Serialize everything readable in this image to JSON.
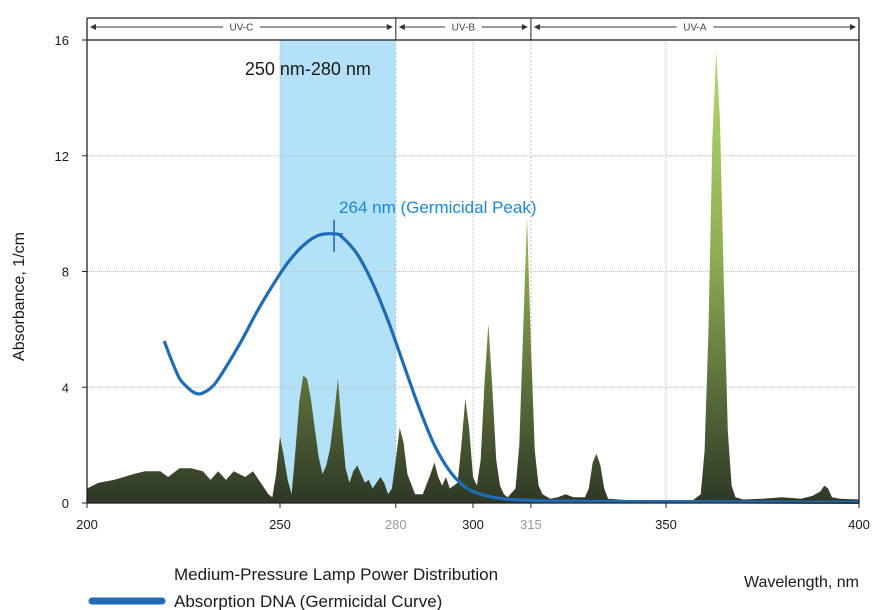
{
  "chart_data": {
    "type": "area",
    "ylabel": "Absorbance, 1/cm",
    "xlabel": "Wavelength, nm",
    "xlim": [
      200,
      400
    ],
    "ylim": [
      0,
      16
    ],
    "y_ticks": [
      "0",
      "4",
      "8",
      "12",
      "16"
    ],
    "x_ticks": [
      {
        "value": 200,
        "label": "200",
        "dim": false
      },
      {
        "value": 250,
        "label": "250",
        "dim": false
      },
      {
        "value": 280,
        "label": "280",
        "dim": true
      },
      {
        "value": 300,
        "label": "300",
        "dim": false
      },
      {
        "value": 315,
        "label": "315",
        "dim": true
      },
      {
        "value": 350,
        "label": "350",
        "dim": false
      },
      {
        "value": 400,
        "label": "400",
        "dim": false
      }
    ],
    "grid": true,
    "bands": [
      {
        "label": "UV-C",
        "from": 200,
        "to": 280
      },
      {
        "label": "UV-B",
        "from": 280,
        "to": 315
      },
      {
        "label": "UV-A",
        "from": 315,
        "to": 400
      }
    ],
    "highlight": {
      "label": "250 nm-280 nm",
      "from": 250,
      "to": 280,
      "color": "#b3e1f7"
    },
    "peak_annotation": {
      "label": "264 nm (Germicidal Peak)",
      "x": 264,
      "y": 9.3
    },
    "series": [
      {
        "name": "Medium-Pressure Lamp Power Distribution",
        "kind": "area",
        "color": "#a6cc5c",
        "points": [
          [
            200,
            0.5
          ],
          [
            203,
            0.7
          ],
          [
            207,
            0.8
          ],
          [
            212,
            1.0
          ],
          [
            215,
            1.1
          ],
          [
            219,
            1.1
          ],
          [
            221,
            0.9
          ],
          [
            224,
            1.2
          ],
          [
            227,
            1.2
          ],
          [
            230,
            1.1
          ],
          [
            232,
            0.8
          ],
          [
            234,
            1.1
          ],
          [
            236,
            0.8
          ],
          [
            238,
            1.1
          ],
          [
            241,
            0.9
          ],
          [
            243,
            1.1
          ],
          [
            245,
            0.7
          ],
          [
            247,
            0.3
          ],
          [
            248,
            0.2
          ],
          [
            249,
            1.0
          ],
          [
            250,
            2.3
          ],
          [
            251,
            1.6
          ],
          [
            252,
            0.8
          ],
          [
            253,
            0.3
          ],
          [
            254,
            1.8
          ],
          [
            255,
            3.5
          ],
          [
            256,
            4.4
          ],
          [
            257,
            4.3
          ],
          [
            258,
            3.6
          ],
          [
            259,
            2.6
          ],
          [
            260,
            1.6
          ],
          [
            261,
            1.0
          ],
          [
            262,
            1.3
          ],
          [
            263,
            1.9
          ],
          [
            264,
            3.0
          ],
          [
            265,
            4.3
          ],
          [
            266,
            2.6
          ],
          [
            267,
            1.2
          ],
          [
            268,
            0.7
          ],
          [
            269,
            1.1
          ],
          [
            270,
            1.3
          ],
          [
            271,
            1.0
          ],
          [
            272,
            0.7
          ],
          [
            273,
            0.8
          ],
          [
            274,
            0.5
          ],
          [
            276,
            0.9
          ],
          [
            277,
            0.7
          ],
          [
            278,
            0.3
          ],
          [
            279,
            0.5
          ],
          [
            280,
            1.5
          ],
          [
            281,
            2.6
          ],
          [
            282,
            2.1
          ],
          [
            283,
            1.0
          ],
          [
            285,
            0.3
          ],
          [
            287,
            0.3
          ],
          [
            289,
            1.0
          ],
          [
            290,
            1.4
          ],
          [
            291,
            0.9
          ],
          [
            292,
            0.6
          ],
          [
            293,
            0.9
          ],
          [
            294,
            0.5
          ],
          [
            296,
            0.7
          ],
          [
            297,
            2.0
          ],
          [
            298,
            3.6
          ],
          [
            299,
            2.6
          ],
          [
            300,
            0.9
          ],
          [
            301,
            0.6
          ],
          [
            302,
            1.5
          ],
          [
            303,
            4.2
          ],
          [
            304,
            6.2
          ],
          [
            305,
            4.0
          ],
          [
            306,
            1.5
          ],
          [
            307,
            0.6
          ],
          [
            308,
            0.3
          ],
          [
            309,
            0.2
          ],
          [
            311,
            0.5
          ],
          [
            312,
            2.0
          ],
          [
            313,
            6.0
          ],
          [
            314,
            9.9
          ],
          [
            315,
            5.5
          ],
          [
            316,
            1.8
          ],
          [
            317,
            0.6
          ],
          [
            318,
            0.3
          ],
          [
            320,
            0.15
          ],
          [
            322,
            0.2
          ],
          [
            324,
            0.3
          ],
          [
            326,
            0.2
          ],
          [
            329,
            0.2
          ],
          [
            330,
            0.5
          ],
          [
            331,
            1.4
          ],
          [
            332,
            1.7
          ],
          [
            333,
            1.3
          ],
          [
            334,
            0.5
          ],
          [
            335,
            0.15
          ],
          [
            340,
            0.1
          ],
          [
            350,
            0.1
          ],
          [
            357,
            0.1
          ],
          [
            359,
            0.3
          ],
          [
            360,
            1.8
          ],
          [
            361,
            6.0
          ],
          [
            362,
            12.5
          ],
          [
            363,
            15.6
          ],
          [
            364,
            13.2
          ],
          [
            365,
            7.5
          ],
          [
            366,
            2.5
          ],
          [
            367,
            0.6
          ],
          [
            368,
            0.2
          ],
          [
            370,
            0.12
          ],
          [
            375,
            0.15
          ],
          [
            380,
            0.2
          ],
          [
            385,
            0.15
          ],
          [
            388,
            0.25
          ],
          [
            390,
            0.4
          ],
          [
            391,
            0.6
          ],
          [
            392,
            0.5
          ],
          [
            393,
            0.2
          ],
          [
            395,
            0.15
          ],
          [
            400,
            0.12
          ]
        ]
      },
      {
        "name": "Absorption DNA (Germicidal Curve)",
        "kind": "line",
        "color": "#1f6bb5",
        "points": [
          [
            220,
            5.6
          ],
          [
            222,
            4.9
          ],
          [
            224,
            4.3
          ],
          [
            226,
            4.0
          ],
          [
            228,
            3.8
          ],
          [
            230,
            3.8
          ],
          [
            233,
            4.1
          ],
          [
            236,
            4.7
          ],
          [
            240,
            5.6
          ],
          [
            244,
            6.6
          ],
          [
            248,
            7.5
          ],
          [
            252,
            8.3
          ],
          [
            256,
            8.9
          ],
          [
            260,
            9.25
          ],
          [
            264,
            9.3
          ],
          [
            266,
            9.2
          ],
          [
            270,
            8.6
          ],
          [
            274,
            7.6
          ],
          [
            278,
            6.3
          ],
          [
            282,
            4.8
          ],
          [
            286,
            3.3
          ],
          [
            290,
            2.0
          ],
          [
            294,
            1.1
          ],
          [
            298,
            0.55
          ],
          [
            302,
            0.3
          ],
          [
            306,
            0.18
          ],
          [
            310,
            0.12
          ],
          [
            320,
            0.07
          ],
          [
            340,
            0.05
          ],
          [
            360,
            0.04
          ],
          [
            380,
            0.03
          ],
          [
            400,
            0.02
          ]
        ]
      }
    ],
    "legend_position": "bottom-left"
  }
}
